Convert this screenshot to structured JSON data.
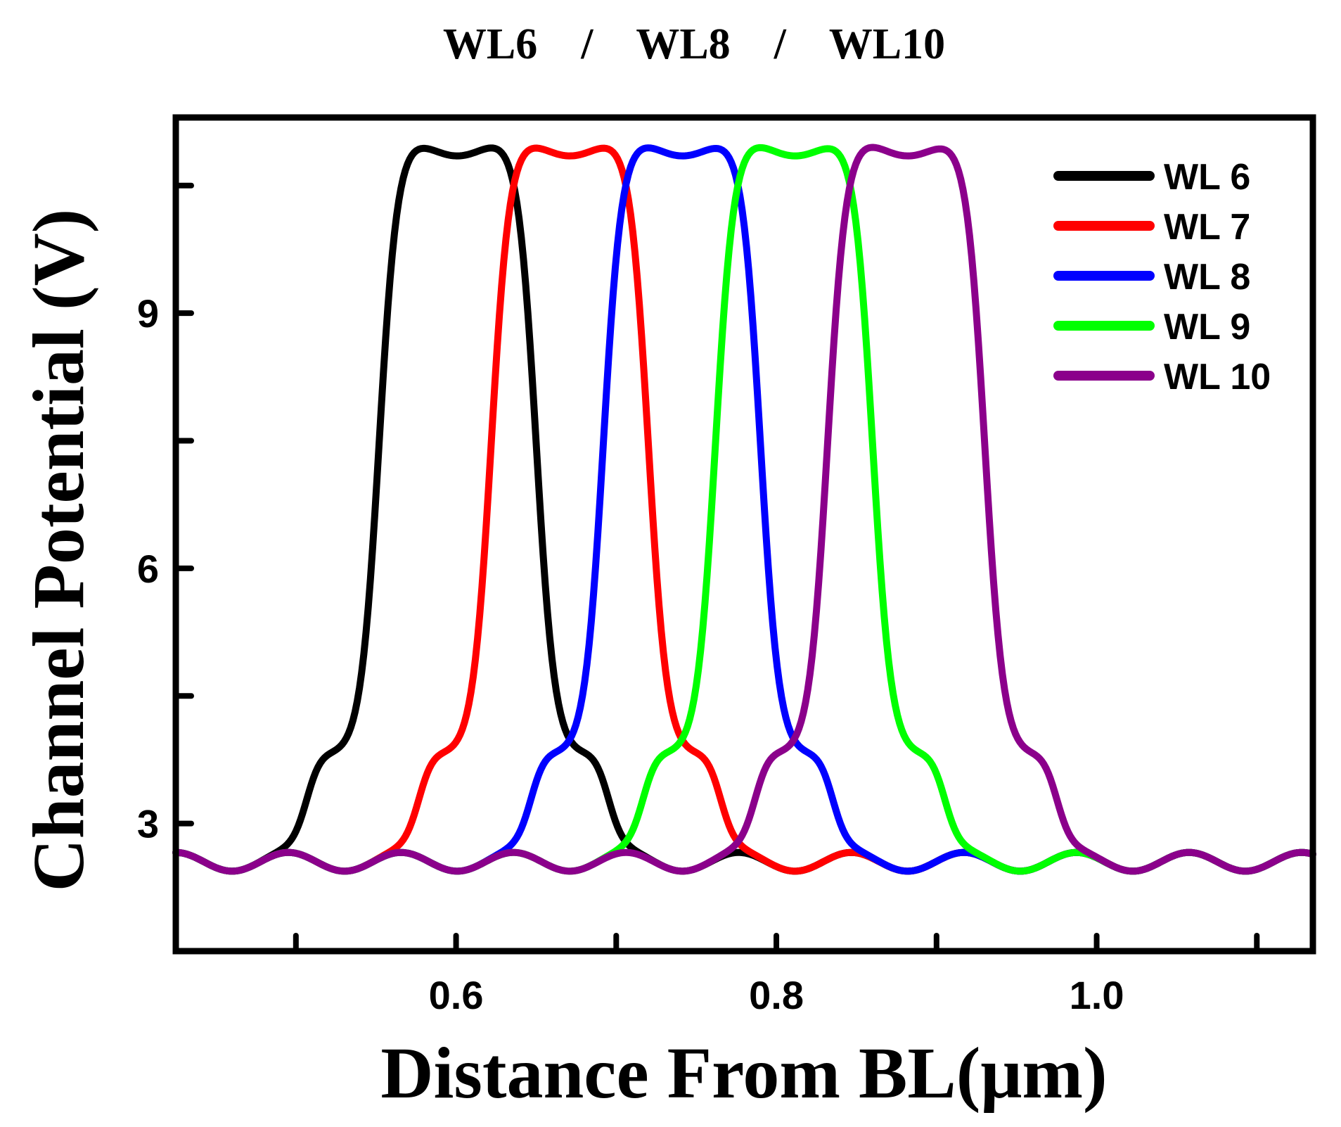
{
  "chart_data": {
    "type": "line",
    "title": "WL6    /    WL8    /    WL10",
    "xlabel": "Distance From BL(μm)",
    "ylabel": "Channel Potential (V)",
    "xlim": [
      0.425,
      1.135
    ],
    "ylim": [
      1.5,
      11.3
    ],
    "xticks": [
      0.5,
      0.6,
      0.7,
      0.8,
      0.9,
      1.0,
      1.1
    ],
    "xtick_labels": [
      "",
      "0.6",
      "",
      "0.8",
      "",
      "1.0",
      ""
    ],
    "yticks": [
      3,
      4.5,
      6,
      7.5,
      9,
      10.5
    ],
    "ytick_labels": [
      "3",
      "",
      "6",
      "",
      "9",
      ""
    ],
    "peak_value": 10.85,
    "baseline": 2.5,
    "legend_position": "top-right",
    "series": [
      {
        "name": "WL 6",
        "color": "#000000",
        "peak_x": 0.601,
        "peak_y": 10.85
      },
      {
        "name": "WL 7",
        "color": "#ff0000",
        "peak_x": 0.671,
        "peak_y": 10.85
      },
      {
        "name": "WL 8",
        "color": "#0000ff",
        "peak_x": 0.741,
        "peak_y": 10.85
      },
      {
        "name": "WL 9",
        "color": "#00ff00",
        "peak_x": 0.811,
        "peak_y": 10.85
      },
      {
        "name": "WL 10",
        "color": "#8b008b",
        "peak_x": 0.881,
        "peak_y": 10.85
      }
    ]
  }
}
